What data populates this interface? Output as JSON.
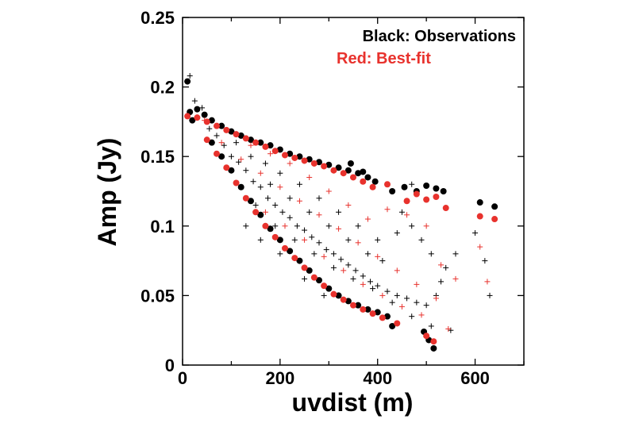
{
  "chart_data": {
    "type": "scatter",
    "title": "",
    "xlabel": "uvdist (m)",
    "ylabel": "Amp (Jy)",
    "xlim": [
      0,
      700
    ],
    "ylim": [
      0,
      0.25
    ],
    "x_ticks": [
      0,
      200,
      400,
      600
    ],
    "y_ticks": [
      0,
      0.05,
      0.1,
      0.15,
      0.2,
      0.25
    ],
    "x_tick_labels": [
      "0",
      "200",
      "400",
      "600"
    ],
    "y_tick_labels": [
      "0",
      "0.05",
      "0.1",
      "0.15",
      "0.2",
      "0.25"
    ],
    "grid": false,
    "legend_position": "top-right",
    "legend": [
      {
        "label": "Black: Observations",
        "color": "#000000"
      },
      {
        "label": "Red: Best-fit",
        "color": "#e8322d"
      }
    ],
    "series": [
      {
        "name": "Black: Observations",
        "marker": "dot",
        "color": "#000000",
        "points": [
          [
            10,
            0.204
          ],
          [
            15,
            0.182
          ],
          [
            20,
            0.176
          ],
          [
            30,
            0.184
          ],
          [
            45,
            0.18
          ],
          [
            60,
            0.176
          ],
          [
            80,
            0.172
          ],
          [
            100,
            0.168
          ],
          [
            120,
            0.165
          ],
          [
            140,
            0.162
          ],
          [
            160,
            0.16
          ],
          [
            180,
            0.158
          ],
          [
            200,
            0.155
          ],
          [
            220,
            0.152
          ],
          [
            240,
            0.15
          ],
          [
            260,
            0.148
          ],
          [
            280,
            0.146
          ],
          [
            300,
            0.144
          ],
          [
            320,
            0.142
          ],
          [
            340,
            0.14
          ],
          [
            360,
            0.138
          ],
          [
            380,
            0.135
          ],
          [
            395,
            0.132
          ],
          [
            370,
            0.139
          ],
          [
            345,
            0.145
          ],
          [
            430,
            0.125
          ],
          [
            455,
            0.128
          ],
          [
            480,
            0.125
          ],
          [
            500,
            0.129
          ],
          [
            520,
            0.127
          ],
          [
            535,
            0.125
          ],
          [
            610,
            0.117
          ],
          [
            640,
            0.114
          ],
          [
            60,
            0.16
          ],
          [
            80,
            0.15
          ],
          [
            100,
            0.14
          ],
          [
            120,
            0.128
          ],
          [
            140,
            0.118
          ],
          [
            160,
            0.108
          ],
          [
            180,
            0.098
          ],
          [
            200,
            0.09
          ],
          [
            220,
            0.082
          ],
          [
            240,
            0.075
          ],
          [
            260,
            0.068
          ],
          [
            280,
            0.061
          ],
          [
            300,
            0.055
          ],
          [
            320,
            0.05
          ],
          [
            340,
            0.046
          ],
          [
            360,
            0.043
          ],
          [
            380,
            0.04
          ],
          [
            400,
            0.038
          ],
          [
            420,
            0.035
          ],
          [
            430,
            0.028
          ],
          [
            495,
            0.024
          ],
          [
            505,
            0.018
          ],
          [
            515,
            0.012
          ]
        ]
      },
      {
        "name": "Red: Best-fit",
        "marker": "dot",
        "color": "#e8322d",
        "points": [
          [
            10,
            0.179
          ],
          [
            30,
            0.178
          ],
          [
            50,
            0.175
          ],
          [
            70,
            0.172
          ],
          [
            90,
            0.169
          ],
          [
            110,
            0.166
          ],
          [
            130,
            0.163
          ],
          [
            150,
            0.16
          ],
          [
            170,
            0.157
          ],
          [
            190,
            0.154
          ],
          [
            210,
            0.151
          ],
          [
            230,
            0.149
          ],
          [
            250,
            0.147
          ],
          [
            270,
            0.145
          ],
          [
            290,
            0.143
          ],
          [
            310,
            0.14
          ],
          [
            330,
            0.138
          ],
          [
            350,
            0.135
          ],
          [
            370,
            0.132
          ],
          [
            390,
            0.128
          ],
          [
            420,
            0.13
          ],
          [
            460,
            0.118
          ],
          [
            480,
            0.123
          ],
          [
            500,
            0.119
          ],
          [
            520,
            0.121
          ],
          [
            540,
            0.113
          ],
          [
            610,
            0.107
          ],
          [
            640,
            0.105
          ],
          [
            50,
            0.162
          ],
          [
            70,
            0.152
          ],
          [
            90,
            0.142
          ],
          [
            110,
            0.131
          ],
          [
            130,
            0.12
          ],
          [
            150,
            0.11
          ],
          [
            170,
            0.1
          ],
          [
            190,
            0.092
          ],
          [
            210,
            0.084
          ],
          [
            230,
            0.077
          ],
          [
            250,
            0.07
          ],
          [
            270,
            0.063
          ],
          [
            290,
            0.057
          ],
          [
            310,
            0.051
          ],
          [
            330,
            0.047
          ],
          [
            350,
            0.043
          ],
          [
            370,
            0.04
          ],
          [
            390,
            0.037
          ],
          [
            410,
            0.034
          ],
          [
            440,
            0.03
          ],
          [
            500,
            0.021
          ],
          [
            515,
            0.017
          ]
        ]
      },
      {
        "name": "",
        "marker": "plus",
        "color": "#000000",
        "points": [
          [
            15,
            0.208
          ],
          [
            25,
            0.19
          ],
          [
            40,
            0.185
          ],
          [
            55,
            0.17
          ],
          [
            70,
            0.165
          ],
          [
            85,
            0.158
          ],
          [
            100,
            0.15
          ],
          [
            115,
            0.146
          ],
          [
            130,
            0.14
          ],
          [
            145,
            0.132
          ],
          [
            160,
            0.128
          ],
          [
            175,
            0.12
          ],
          [
            190,
            0.115
          ],
          [
            205,
            0.11
          ],
          [
            220,
            0.106
          ],
          [
            235,
            0.1
          ],
          [
            250,
            0.097
          ],
          [
            265,
            0.092
          ],
          [
            280,
            0.088
          ],
          [
            295,
            0.083
          ],
          [
            310,
            0.08
          ],
          [
            325,
            0.076
          ],
          [
            340,
            0.072
          ],
          [
            355,
            0.068
          ],
          [
            370,
            0.064
          ],
          [
            385,
            0.06
          ],
          [
            400,
            0.057
          ],
          [
            420,
            0.053
          ],
          [
            440,
            0.05
          ],
          [
            460,
            0.048
          ],
          [
            480,
            0.045
          ],
          [
            500,
            0.043
          ],
          [
            520,
            0.05
          ],
          [
            540,
            0.07
          ],
          [
            560,
            0.08
          ],
          [
            600,
            0.095
          ],
          [
            620,
            0.075
          ],
          [
            630,
            0.05
          ],
          [
            450,
            0.11
          ],
          [
            470,
            0.1
          ],
          [
            490,
            0.09
          ],
          [
            510,
            0.08
          ],
          [
            530,
            0.06
          ],
          [
            400,
            0.09
          ],
          [
            360,
            0.1
          ],
          [
            320,
            0.11
          ],
          [
            280,
            0.12
          ],
          [
            240,
            0.13
          ],
          [
            200,
            0.138
          ],
          [
            170,
            0.145
          ],
          [
            140,
            0.15
          ],
          [
            110,
            0.16
          ],
          [
            150,
            0.115
          ],
          [
            190,
            0.1
          ],
          [
            230,
            0.09
          ],
          [
            270,
            0.08
          ],
          [
            310,
            0.07
          ],
          [
            350,
            0.062
          ],
          [
            390,
            0.055
          ],
          [
            430,
            0.045
          ],
          [
            470,
            0.035
          ],
          [
            510,
            0.028
          ],
          [
            550,
            0.025
          ],
          [
            470,
            0.13
          ],
          [
            440,
            0.095
          ],
          [
            410,
            0.075
          ],
          [
            380,
            0.08
          ],
          [
            340,
            0.09
          ],
          [
            300,
            0.1
          ],
          [
            260,
            0.11
          ],
          [
            220,
            0.12
          ],
          [
            180,
            0.13
          ],
          [
            130,
            0.1
          ],
          [
            160,
            0.09
          ],
          [
            200,
            0.08
          ],
          [
            250,
            0.062
          ],
          [
            290,
            0.05
          ]
        ]
      },
      {
        "name": "",
        "marker": "plus",
        "color": "#e8322d",
        "points": [
          [
            45,
            0.176
          ],
          [
            80,
            0.16
          ],
          [
            120,
            0.148
          ],
          [
            160,
            0.138
          ],
          [
            200,
            0.128
          ],
          [
            240,
            0.118
          ],
          [
            280,
            0.108
          ],
          [
            320,
            0.098
          ],
          [
            360,
            0.088
          ],
          [
            400,
            0.078
          ],
          [
            440,
            0.068
          ],
          [
            480,
            0.058
          ],
          [
            520,
            0.048
          ],
          [
            545,
            0.026
          ],
          [
            560,
            0.062
          ],
          [
            610,
            0.085
          ],
          [
            625,
            0.06
          ],
          [
            500,
            0.1
          ],
          [
            460,
            0.108
          ],
          [
            420,
            0.112
          ],
          [
            380,
            0.105
          ],
          [
            340,
            0.115
          ],
          [
            300,
            0.125
          ],
          [
            260,
            0.135
          ],
          [
            220,
            0.145
          ],
          [
            180,
            0.152
          ],
          [
            140,
            0.158
          ],
          [
            170,
            0.11
          ],
          [
            210,
            0.1
          ],
          [
            250,
            0.09
          ],
          [
            290,
            0.078
          ],
          [
            330,
            0.068
          ],
          [
            370,
            0.058
          ],
          [
            410,
            0.05
          ],
          [
            450,
            0.042
          ],
          [
            490,
            0.036
          ],
          [
            530,
            0.072
          ]
        ]
      }
    ]
  }
}
